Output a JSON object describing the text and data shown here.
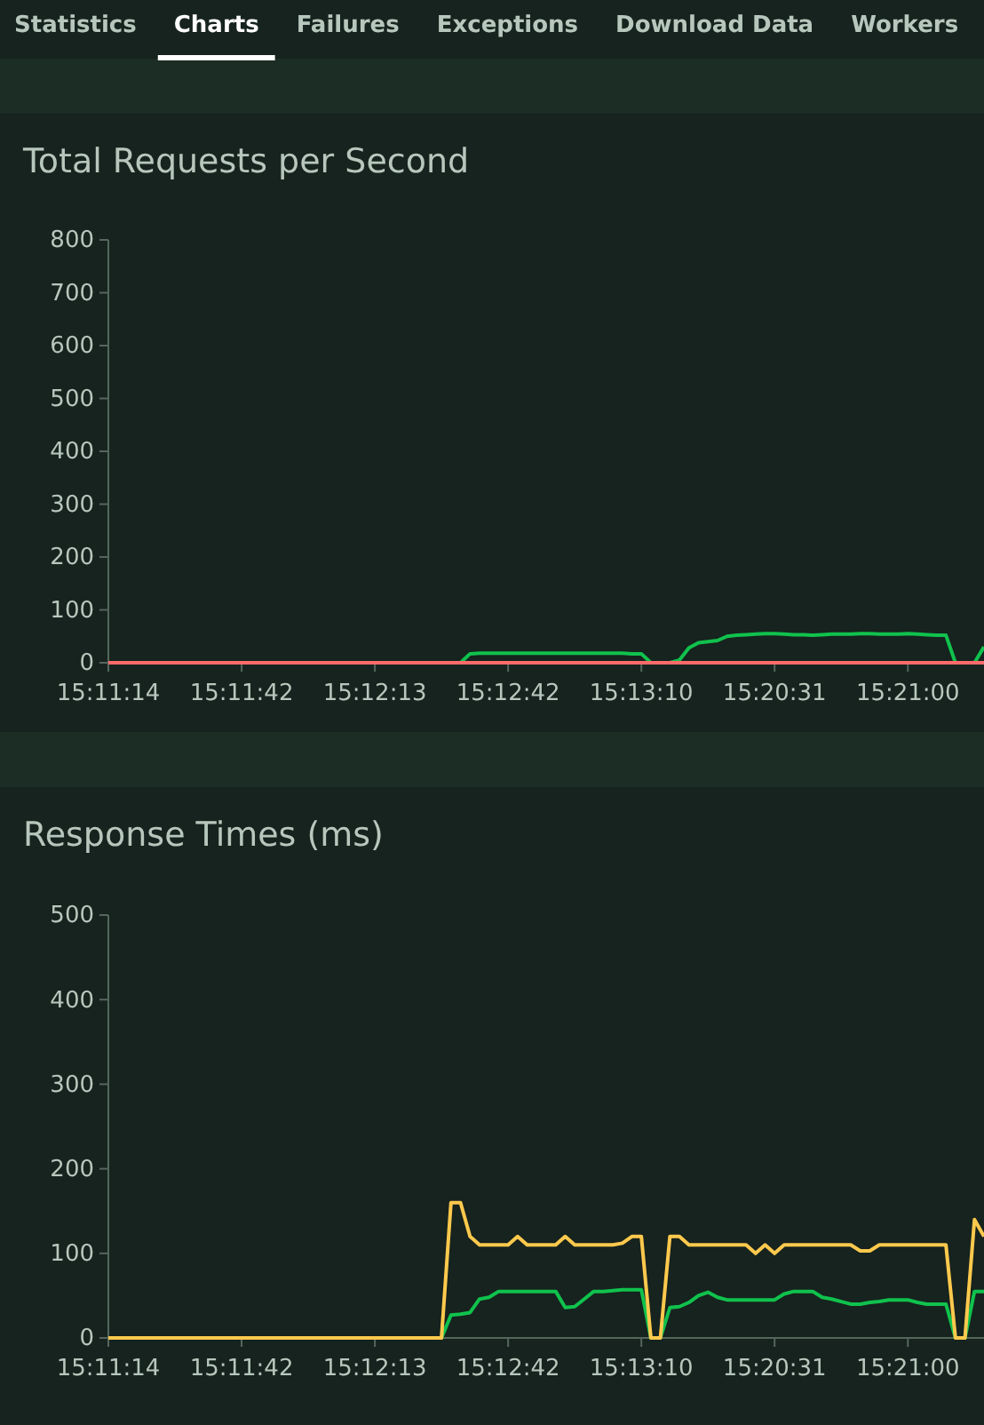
{
  "chart_data": [
    {
      "type": "line",
      "title": "Total Requests per Second",
      "annotations": [
        "Statistics",
        "Charts",
        "Failures",
        "Exceptions",
        "Download Data",
        "Workers"
      ],
      "categories": [
        "15:11:14",
        null,
        null,
        null,
        null,
        null,
        null,
        null,
        null,
        null,
        null,
        null,
        null,
        null,
        "15:11:42",
        null,
        null,
        null,
        null,
        null,
        null,
        null,
        null,
        null,
        null,
        null,
        null,
        null,
        "15:12:13",
        null,
        null,
        null,
        null,
        null,
        null,
        null,
        null,
        null,
        null,
        null,
        null,
        null,
        "15:12:42",
        null,
        null,
        null,
        null,
        null,
        null,
        null,
        null,
        null,
        null,
        null,
        null,
        null,
        "15:13:10",
        null,
        null,
        null,
        null,
        null,
        null,
        null,
        null,
        null,
        null,
        null,
        null,
        null,
        "15:20:31",
        null,
        null,
        null,
        null,
        null,
        null,
        null,
        null,
        null,
        null,
        null,
        null,
        null,
        "15:21:00",
        null,
        null,
        null,
        null,
        null,
        null,
        null,
        null
      ],
      "series": [
        {
          "color": "#10c24d",
          "values": [
            null,
            null,
            null,
            null,
            null,
            null,
            null,
            null,
            null,
            null,
            null,
            null,
            null,
            null,
            null,
            null,
            null,
            null,
            null,
            null,
            null,
            null,
            null,
            null,
            null,
            null,
            null,
            null,
            null,
            null,
            null,
            null,
            null,
            null,
            null,
            0,
            0,
            0,
            17,
            18,
            18,
            18,
            18,
            18,
            18,
            18,
            18,
            18,
            18,
            18,
            18,
            18,
            18,
            18,
            18,
            17,
            17,
            0,
            0,
            0,
            5,
            28,
            38,
            40,
            42,
            50,
            52,
            53,
            54,
            55,
            55,
            54,
            53,
            53,
            52,
            53,
            54,
            54,
            54,
            55,
            55,
            54,
            54,
            54,
            55,
            54,
            53,
            52,
            52,
            0,
            0,
            0,
            30
          ]
        },
        {
          "color": "#ff6b6b",
          "values": [
            0,
            0,
            0,
            0,
            0,
            0,
            0,
            0,
            0,
            0,
            0,
            0,
            0,
            0,
            0,
            0,
            0,
            0,
            0,
            0,
            0,
            0,
            0,
            0,
            0,
            0,
            0,
            0,
            0,
            0,
            0,
            0,
            0,
            0,
            0,
            0,
            0,
            0,
            0,
            0,
            0,
            0,
            0,
            0,
            0,
            0,
            0,
            0,
            0,
            0,
            0,
            0,
            0,
            0,
            0,
            0,
            0,
            0,
            0,
            0,
            0,
            0,
            0,
            0,
            0,
            0,
            0,
            0,
            0,
            0,
            0,
            0,
            0,
            0,
            0,
            0,
            0,
            0,
            0,
            0,
            0,
            0,
            0,
            0,
            0,
            0,
            0,
            0,
            0,
            0,
            0,
            0,
            0
          ]
        }
      ],
      "ylim": [
        0,
        800
      ],
      "yticks": [
        0,
        100,
        200,
        300,
        400,
        500,
        600,
        700,
        800
      ],
      "grid": false
    },
    {
      "type": "line",
      "title": "Response Times (ms)",
      "categories": [
        "15:11:14",
        null,
        null,
        null,
        null,
        null,
        null,
        null,
        null,
        null,
        null,
        null,
        null,
        null,
        "15:11:42",
        null,
        null,
        null,
        null,
        null,
        null,
        null,
        null,
        null,
        null,
        null,
        null,
        null,
        "15:12:13",
        null,
        null,
        null,
        null,
        null,
        null,
        null,
        null,
        null,
        null,
        null,
        null,
        null,
        "15:12:42",
        null,
        null,
        null,
        null,
        null,
        null,
        null,
        null,
        null,
        null,
        null,
        null,
        null,
        "15:13:10",
        null,
        null,
        null,
        null,
        null,
        null,
        null,
        null,
        null,
        null,
        null,
        null,
        null,
        "15:20:31",
        null,
        null,
        null,
        null,
        null,
        null,
        null,
        null,
        null,
        null,
        null,
        null,
        null,
        "15:21:00",
        null,
        null,
        null,
        null,
        null,
        null,
        null,
        null
      ],
      "series": [
        {
          "color": "#10c24d",
          "values": [
            null,
            null,
            null,
            null,
            null,
            null,
            null,
            null,
            null,
            null,
            null,
            null,
            null,
            null,
            null,
            null,
            null,
            null,
            null,
            null,
            null,
            null,
            null,
            null,
            null,
            null,
            null,
            null,
            null,
            null,
            null,
            null,
            null,
            null,
            0,
            0,
            27,
            28,
            30,
            46,
            48,
            55,
            55,
            55,
            55,
            55,
            55,
            55,
            36,
            37,
            46,
            55,
            55,
            56,
            57,
            57,
            57,
            0,
            0,
            36,
            37,
            42,
            50,
            54,
            48,
            45,
            45,
            45,
            45,
            45,
            45,
            52,
            55,
            55,
            55,
            48,
            46,
            43,
            40,
            40,
            42,
            43,
            45,
            45,
            45,
            42,
            40,
            40,
            40,
            0,
            0,
            55,
            55
          ]
        },
        {
          "color": "#ffc94d",
          "values": [
            0,
            0,
            0,
            0,
            0,
            0,
            0,
            0,
            0,
            0,
            0,
            0,
            0,
            0,
            0,
            0,
            0,
            0,
            0,
            0,
            0,
            0,
            0,
            0,
            0,
            0,
            0,
            0,
            0,
            0,
            0,
            0,
            0,
            0,
            0,
            0,
            160,
            160,
            120,
            110,
            110,
            110,
            110,
            120,
            110,
            110,
            110,
            110,
            120,
            110,
            110,
            110,
            110,
            110,
            112,
            120,
            120,
            0,
            0,
            120,
            120,
            110,
            110,
            110,
            110,
            110,
            110,
            110,
            100,
            110,
            100,
            110,
            110,
            110,
            110,
            110,
            110,
            110,
            110,
            103,
            103,
            110,
            110,
            110,
            110,
            110,
            110,
            110,
            110,
            0,
            0,
            140,
            120
          ]
        }
      ],
      "ylim": [
        0,
        500
      ],
      "yticks": [
        0,
        100,
        200,
        300,
        400,
        500
      ],
      "grid": false
    }
  ]
}
